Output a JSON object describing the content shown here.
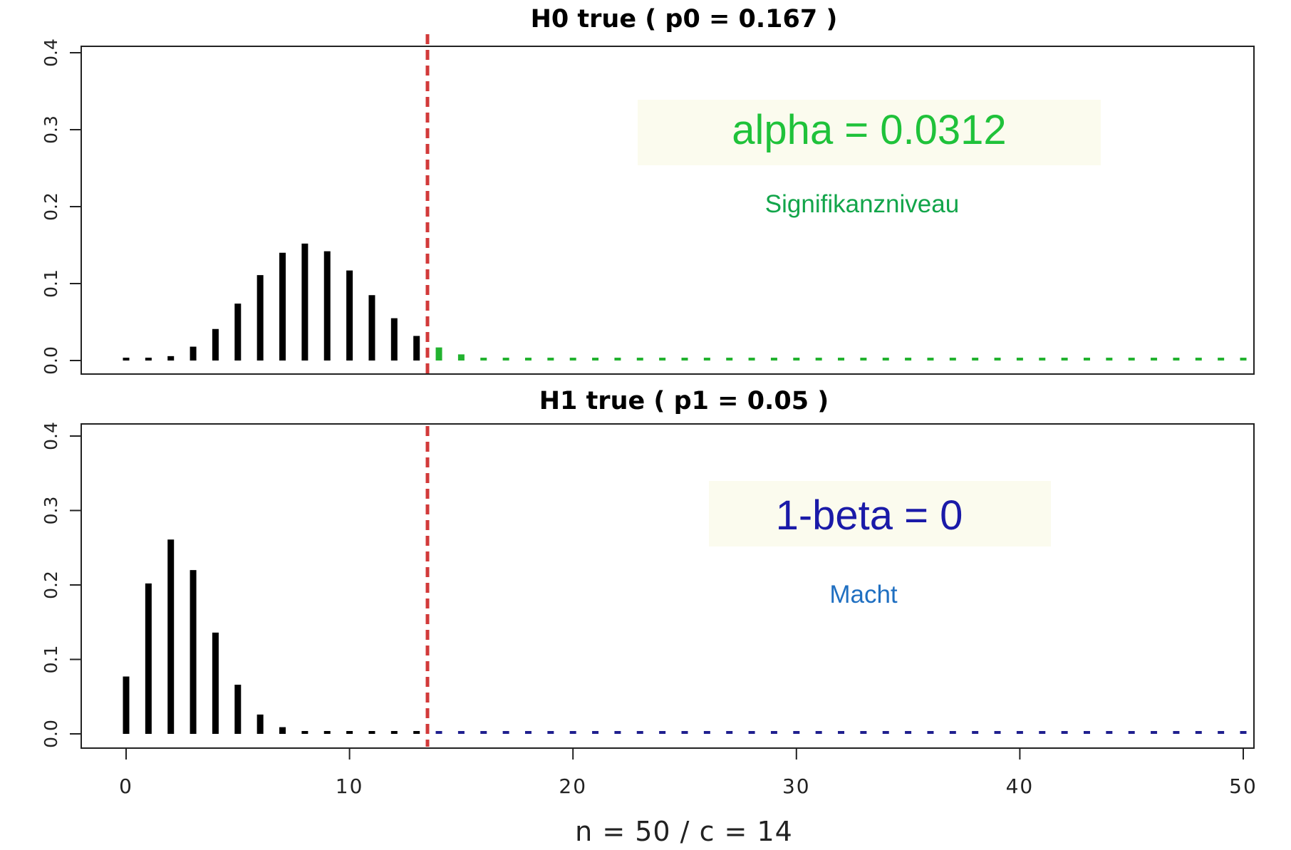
{
  "chart_data": [
    {
      "type": "bar",
      "title": "H0 true ( p0 = 0.167 )",
      "x": [
        0,
        1,
        2,
        3,
        4,
        5,
        6,
        7,
        8,
        9,
        10,
        11,
        12,
        13,
        14,
        15,
        16,
        17,
        18,
        19,
        20,
        21,
        22,
        23,
        24,
        25,
        26,
        27,
        28,
        29,
        30,
        31,
        32,
        33,
        34,
        35,
        36,
        37,
        38,
        39,
        40,
        41,
        42,
        43,
        44,
        45,
        46,
        47,
        48,
        49,
        50
      ],
      "values": [
        0.0001,
        0.0012,
        0.0057,
        0.018,
        0.041,
        0.074,
        0.111,
        0.14,
        0.152,
        0.142,
        0.117,
        0.085,
        0.055,
        0.032,
        0.017,
        0.008,
        0.0032,
        0.0011,
        0.0004,
        0.0001,
        0,
        0,
        0,
        0,
        0,
        0,
        0,
        0,
        0,
        0,
        0,
        0,
        0,
        0,
        0,
        0,
        0,
        0,
        0,
        0,
        0,
        0,
        0,
        0,
        0,
        0,
        0,
        0,
        0,
        0,
        0
      ],
      "colors": {
        "below": "#000000",
        "reject": "#22b22f"
      },
      "ylim": [
        0,
        0.4
      ],
      "yticks": [
        "0.0",
        "0.1",
        "0.2",
        "0.3",
        "0.4"
      ],
      "critical_value": 13.5,
      "annotation": "alpha = 0.0312",
      "annotation_color": "#1fc23a",
      "sublabel": "Signifikanzniveau",
      "sublabel_color": "#12a54a"
    },
    {
      "type": "bar",
      "title": "H1 true ( p1 = 0.05 )",
      "x": [
        0,
        1,
        2,
        3,
        4,
        5,
        6,
        7,
        8,
        9,
        10,
        11,
        12,
        13,
        14,
        15,
        16,
        17,
        18,
        19,
        20,
        21,
        22,
        23,
        24,
        25,
        26,
        27,
        28,
        29,
        30,
        31,
        32,
        33,
        34,
        35,
        36,
        37,
        38,
        39,
        40,
        41,
        42,
        43,
        44,
        45,
        46,
        47,
        48,
        49,
        50
      ],
      "values": [
        0.077,
        0.202,
        0.261,
        0.22,
        0.136,
        0.066,
        0.026,
        0.009,
        0.0022,
        0.0005,
        0.0001,
        0,
        0,
        0,
        0,
        0,
        0,
        0,
        0,
        0,
        0,
        0,
        0,
        0,
        0,
        0,
        0,
        0,
        0,
        0,
        0,
        0,
        0,
        0,
        0,
        0,
        0,
        0,
        0,
        0,
        0,
        0,
        0,
        0,
        0,
        0,
        0,
        0,
        0,
        0,
        0
      ],
      "colors": {
        "below": "#000000",
        "reject": "#1f1f8f"
      },
      "ylim": [
        0,
        0.4
      ],
      "yticks": [
        "0.0",
        "0.1",
        "0.2",
        "0.3",
        "0.4"
      ],
      "critical_value": 13.5,
      "xlim": [
        0,
        50
      ],
      "xticks": [
        "0",
        "10",
        "20",
        "30",
        "40",
        "50"
      ],
      "xlabel": "n = 50 / c = 14",
      "annotation": "1-beta = 0",
      "annotation_color": "#1a1aa8",
      "sublabel": "Macht",
      "sublabel_color": "#1f6fc1"
    }
  ],
  "colors": {
    "critical_line": "#d23a3a",
    "annotation_box": "#fbfbee"
  }
}
